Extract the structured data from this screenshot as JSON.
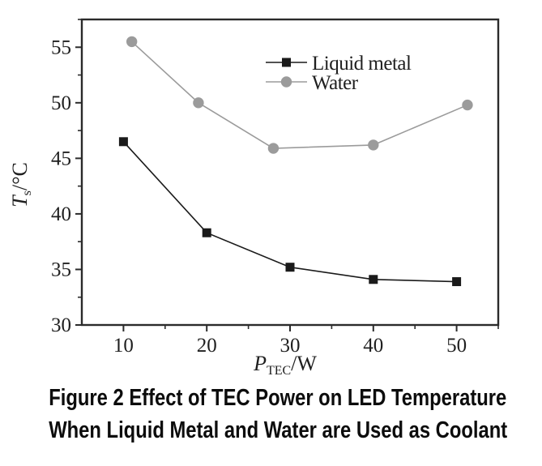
{
  "figure": {
    "caption_line1": "Figure 2 Effect of TEC Power on LED Temperature",
    "caption_line2": "When Liquid Metal and Water are Used as Coolant"
  },
  "colors": {
    "axis": "#2b2b2b",
    "tick_text": "#1f1f1f",
    "caption_text": "#0c0c0c",
    "liquid_metal": "#1a1a1a",
    "water": "#9b9b9b"
  },
  "chart_data": {
    "type": "line",
    "title": "",
    "xlabel": "P_TEC/W",
    "ylabel": "T_s/°C",
    "xlabel_parts": {
      "main": "P",
      "sub": "TEC",
      "rest": "/W"
    },
    "ylabel_parts": {
      "main": "T",
      "sub": "s",
      "rest": "/°C"
    },
    "xlim": [
      5,
      55
    ],
    "ylim": [
      30,
      57.5
    ],
    "x_major_ticks": [
      10,
      20,
      30,
      40,
      50
    ],
    "x_minor_ticks": [
      15,
      25,
      35,
      45,
      55
    ],
    "y_major_ticks": [
      30,
      35,
      40,
      45,
      50,
      55
    ],
    "y_minor_ticks": [
      32.5,
      37.5,
      42.5,
      47.5,
      52.5,
      57.5
    ],
    "grid": false,
    "legend_position": "upper-right-inside",
    "series": [
      {
        "name": "Liquid metal",
        "marker": "square",
        "color": "#1a1a1a",
        "x": [
          10,
          20,
          30,
          40,
          50
        ],
        "y": [
          46.5,
          38.3,
          35.2,
          34.1,
          33.9
        ]
      },
      {
        "name": "Water",
        "marker": "circle",
        "color": "#9b9b9b",
        "x": [
          11,
          19,
          28,
          40,
          51.3
        ],
        "y": [
          55.5,
          50.0,
          45.9,
          46.2,
          49.8
        ]
      }
    ]
  }
}
